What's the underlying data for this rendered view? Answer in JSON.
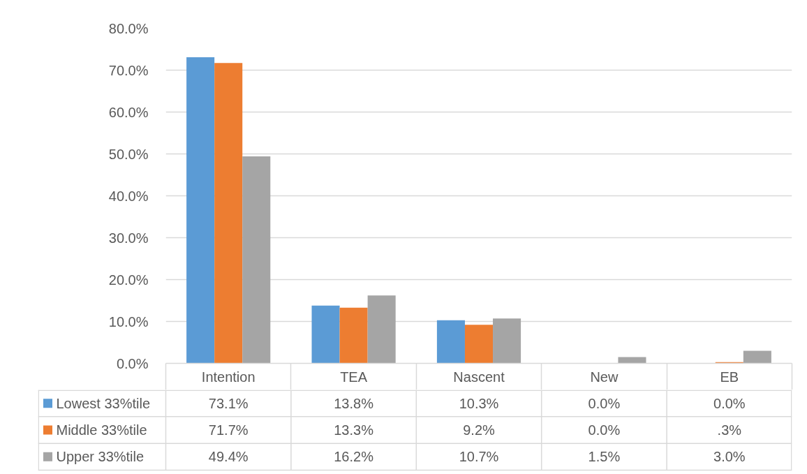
{
  "chart_data": {
    "type": "bar",
    "categories": [
      "Intention",
      "TEA",
      "Nascent",
      "New",
      "EB"
    ],
    "series": [
      {
        "name": "Lowest 33%tile",
        "color": "#5b9bd5",
        "values": [
          73.1,
          13.8,
          10.3,
          0.0,
          0.0
        ],
        "value_labels": [
          "73.1%",
          "13.8%",
          "10.3%",
          "0.0%",
          "0.0%"
        ]
      },
      {
        "name": "Middle 33%tile",
        "color": "#ed7d31",
        "values": [
          71.7,
          13.3,
          9.2,
          0.0,
          0.3
        ],
        "value_labels": [
          "71.7%",
          "13.3%",
          "9.2%",
          "0.0%",
          ".3%"
        ]
      },
      {
        "name": "Upper 33%tile",
        "color": "#a5a5a5",
        "values": [
          49.4,
          16.2,
          10.7,
          1.5,
          3.0
        ],
        "value_labels": [
          "49.4%",
          "16.2%",
          "10.7%",
          "1.5%",
          "3.0%"
        ]
      }
    ],
    "ylim": [
      0,
      80
    ],
    "yticks": [
      {
        "value": 0,
        "label": "0.0%"
      },
      {
        "value": 10,
        "label": "10.0%"
      },
      {
        "value": 20,
        "label": "20.0%"
      },
      {
        "value": 30,
        "label": "30.0%"
      },
      {
        "value": 40,
        "label": "40.0%"
      },
      {
        "value": 50,
        "label": "50.0%"
      },
      {
        "value": 60,
        "label": "60.0%"
      },
      {
        "value": 70,
        "label": "70.0%"
      },
      {
        "value": 80,
        "label": "80.0%"
      }
    ],
    "grid": "y",
    "legend": "bottom"
  }
}
